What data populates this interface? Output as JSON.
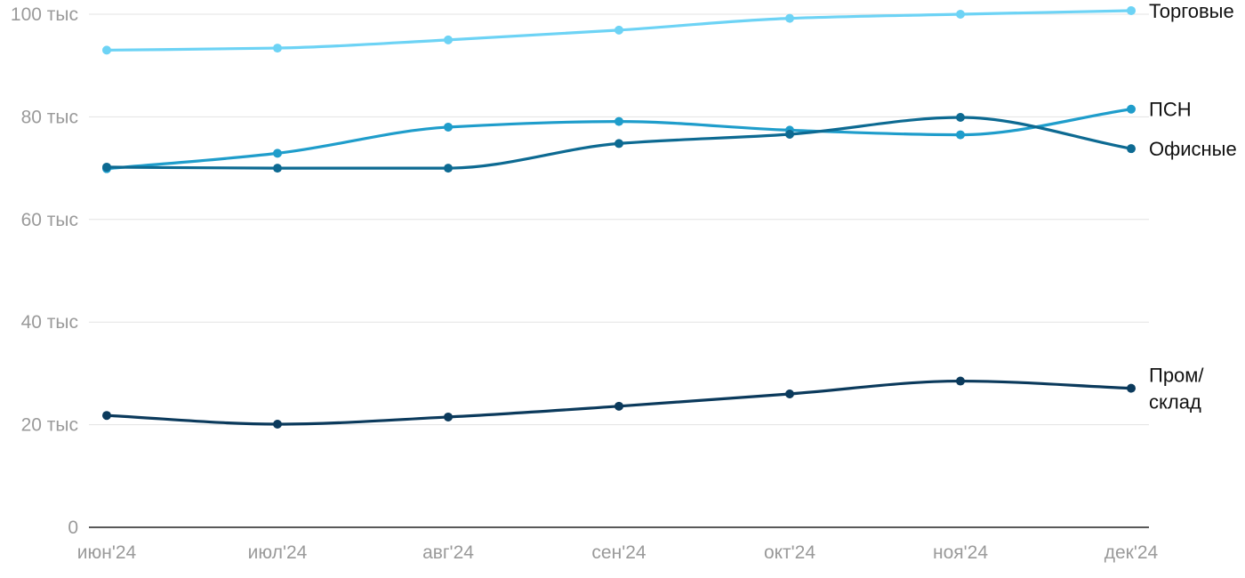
{
  "chart_data": {
    "type": "line",
    "categories": [
      "июн'24",
      "июл'24",
      "авг'24",
      "сен'24",
      "окт'24",
      "ноя'24",
      "дек'24"
    ],
    "ylim": [
      0,
      100000
    ],
    "yticks": [
      {
        "value": 0,
        "label": "0"
      },
      {
        "value": 20000,
        "label": "20 тыс"
      },
      {
        "value": 40000,
        "label": "40 тыс"
      },
      {
        "value": 60000,
        "label": "60 тыс"
      },
      {
        "value": 80000,
        "label": "80 тыс"
      },
      {
        "value": 100000,
        "label": "100 тыс"
      }
    ],
    "grid": true,
    "legend": "end-of-line labels",
    "series": [
      {
        "name": "Торговые",
        "color": "#6dd3f5",
        "values": [
          93000,
          93400,
          95000,
          96900,
          99200,
          100000,
          100700
        ]
      },
      {
        "name": "ПСН",
        "color": "#1f9dcb",
        "values": [
          69900,
          72900,
          78000,
          79100,
          77400,
          76500,
          81500
        ]
      },
      {
        "name": "Офисные",
        "color": "#0d6a92",
        "values": [
          70200,
          70000,
          70000,
          74800,
          76600,
          79900,
          73800
        ]
      },
      {
        "name": "Пром/ склад",
        "color": "#0b3a5c",
        "values": [
          21800,
          20100,
          21500,
          23600,
          26000,
          28500,
          27100
        ]
      }
    ]
  }
}
